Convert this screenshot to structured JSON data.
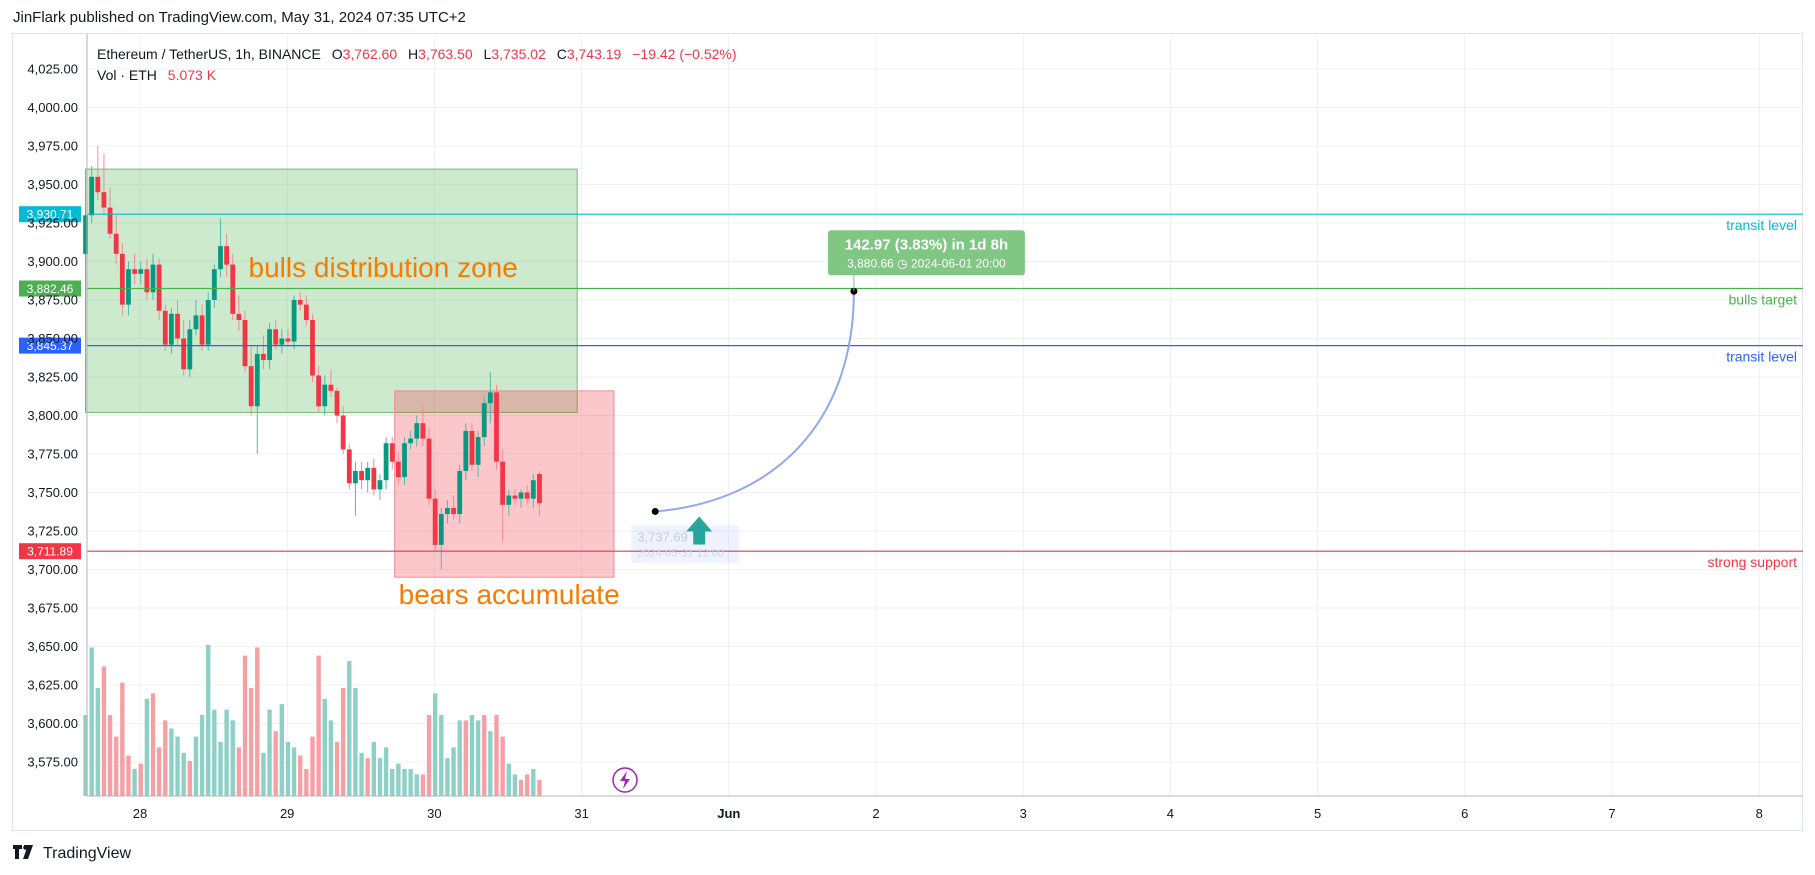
{
  "header": {
    "publisher_line": "JinFlark published on TradingView.com, May 31, 2024 07:35 UTC+2"
  },
  "legend": {
    "symbol": "Ethereum / TetherUS, 1h, BINANCE",
    "o_label": "O",
    "o_value": "3,762.60",
    "h_label": "H",
    "h_value": "3,763.50",
    "l_label": "L",
    "l_value": "3,735.02",
    "c_label": "C",
    "c_value": "3,743.19",
    "change": "−19.42 (−0.52%)",
    "vol_label": "Vol · ETH",
    "vol_value": "5.073 K"
  },
  "footer": {
    "logo_icon": "tradingview-logo-icon",
    "brand": "TradingView"
  },
  "colors": {
    "up": "#089981",
    "down": "#f23645",
    "vol_up": "#8fd0c6",
    "vol_down": "#f5a0a5",
    "grid": "#eef0f4",
    "axis_text": "#131722"
  },
  "chart_data": {
    "type": "candlestick",
    "symbol": "Ethereum / TetherUS, 1h, BINANCE",
    "ylim": [
      3550,
      4050
    ],
    "y_ticks": [
      3575,
      3600,
      3625,
      3650,
      3675,
      3700,
      3725,
      3750,
      3775,
      3800,
      3825,
      3850,
      3875,
      3900,
      3925,
      3950,
      3975,
      4000,
      4025
    ],
    "y_tick_labels": [
      "3,575.00",
      "3,600.00",
      "3,625.00",
      "3,650.00",
      "3,675.00",
      "3,700.00",
      "3,725.00",
      "3,750.00",
      "3,775.00",
      "3,800.00",
      "3,825.00",
      "3,850.00",
      "3,875.00",
      "3,900.00",
      "3,925.00",
      "3,950.00",
      "3,975.00",
      "4,000.00",
      "4,025.00"
    ],
    "x_ticks": [
      {
        "day": 28,
        "label": "28"
      },
      {
        "day": 29,
        "label": "29"
      },
      {
        "day": 30,
        "label": "30"
      },
      {
        "day": 31,
        "label": "31"
      },
      {
        "day": 32,
        "label": "Jun"
      },
      {
        "day": 33,
        "label": "2"
      },
      {
        "day": 34,
        "label": "3"
      },
      {
        "day": 35,
        "label": "4"
      },
      {
        "day": 36,
        "label": "5"
      },
      {
        "day": 37,
        "label": "6"
      },
      {
        "day": 38,
        "label": "7"
      },
      {
        "day": 39,
        "label": "8"
      }
    ],
    "candle_start_day": 27.63,
    "candle_step_days": 0.04167,
    "candles": [
      [
        3905,
        3935,
        3900,
        3930
      ],
      [
        3930,
        3962,
        3925,
        3955
      ],
      [
        3955,
        3975,
        3940,
        3945
      ],
      [
        3945,
        3970,
        3930,
        3935
      ],
      [
        3935,
        3948,
        3915,
        3918
      ],
      [
        3918,
        3930,
        3898,
        3905
      ],
      [
        3905,
        3912,
        3865,
        3872
      ],
      [
        3872,
        3900,
        3865,
        3895
      ],
      [
        3895,
        3905,
        3885,
        3892
      ],
      [
        3892,
        3900,
        3885,
        3895
      ],
      [
        3895,
        3902,
        3875,
        3880
      ],
      [
        3880,
        3905,
        3875,
        3898
      ],
      [
        3898,
        3902,
        3862,
        3868
      ],
      [
        3868,
        3872,
        3842,
        3846
      ],
      [
        3846,
        3870,
        3840,
        3866
      ],
      [
        3866,
        3875,
        3845,
        3850
      ],
      [
        3850,
        3862,
        3826,
        3830
      ],
      [
        3830,
        3862,
        3825,
        3856
      ],
      [
        3856,
        3875,
        3852,
        3865
      ],
      [
        3865,
        3872,
        3842,
        3846
      ],
      [
        3846,
        3880,
        3842,
        3875
      ],
      [
        3875,
        3898,
        3870,
        3895
      ],
      [
        3895,
        3928,
        3890,
        3910
      ],
      [
        3910,
        3918,
        3890,
        3898
      ],
      [
        3898,
        3905,
        3862,
        3866
      ],
      [
        3866,
        3878,
        3855,
        3862
      ],
      [
        3862,
        3868,
        3828,
        3832
      ],
      [
        3832,
        3845,
        3800,
        3806
      ],
      [
        3806,
        3845,
        3775,
        3840
      ],
      [
        3840,
        3852,
        3830,
        3836
      ],
      [
        3836,
        3860,
        3830,
        3856
      ],
      [
        3856,
        3862,
        3843,
        3846
      ],
      [
        3846,
        3856,
        3840,
        3850
      ],
      [
        3850,
        3856,
        3845,
        3848
      ],
      [
        3848,
        3878,
        3843,
        3875
      ],
      [
        3875,
        3880,
        3868,
        3872
      ],
      [
        3872,
        3878,
        3858,
        3862
      ],
      [
        3862,
        3866,
        3822,
        3826
      ],
      [
        3826,
        3832,
        3802,
        3806
      ],
      [
        3806,
        3826,
        3800,
        3820
      ],
      [
        3820,
        3830,
        3812,
        3816
      ],
      [
        3816,
        3818,
        3795,
        3800
      ],
      [
        3800,
        3806,
        3775,
        3778
      ],
      [
        3778,
        3782,
        3752,
        3756
      ],
      [
        3756,
        3770,
        3735,
        3764
      ],
      [
        3764,
        3770,
        3752,
        3758
      ],
      [
        3758,
        3770,
        3750,
        3766
      ],
      [
        3766,
        3772,
        3748,
        3752
      ],
      [
        3752,
        3762,
        3745,
        3758
      ],
      [
        3758,
        3786,
        3752,
        3782
      ],
      [
        3782,
        3786,
        3765,
        3770
      ],
      [
        3770,
        3776,
        3755,
        3760
      ],
      [
        3760,
        3786,
        3755,
        3782
      ],
      [
        3782,
        3790,
        3778,
        3785
      ],
      [
        3785,
        3800,
        3780,
        3795
      ],
      [
        3795,
        3806,
        3780,
        3785
      ],
      [
        3785,
        3792,
        3742,
        3746
      ],
      [
        3746,
        3752,
        3712,
        3716
      ],
      [
        3716,
        3740,
        3700,
        3736
      ],
      [
        3736,
        3745,
        3730,
        3740
      ],
      [
        3740,
        3748,
        3732,
        3736
      ],
      [
        3736,
        3768,
        3730,
        3764
      ],
      [
        3764,
        3795,
        3758,
        3790
      ],
      [
        3790,
        3795,
        3764,
        3768
      ],
      [
        3768,
        3790,
        3760,
        3786
      ],
      [
        3786,
        3812,
        3780,
        3808
      ],
      [
        3808,
        3828,
        3795,
        3815
      ],
      [
        3815,
        3820,
        3765,
        3770
      ],
      [
        3770,
        3778,
        3718,
        3742
      ],
      [
        3742,
        3752,
        3735,
        3748
      ],
      [
        3748,
        3752,
        3742,
        3746
      ],
      [
        3746,
        3752,
        3740,
        3750
      ],
      [
        3750,
        3755,
        3742,
        3746
      ],
      [
        3746,
        3762,
        3740,
        3758
      ],
      [
        3762,
        3764,
        3735,
        3743
      ]
    ],
    "volume": [
      [
        30,
        1
      ],
      [
        55,
        1
      ],
      [
        40,
        1
      ],
      [
        48,
        0
      ],
      [
        30,
        0
      ],
      [
        22,
        0
      ],
      [
        42,
        0
      ],
      [
        15,
        0
      ],
      [
        10,
        1
      ],
      [
        12,
        0
      ],
      [
        36,
        1
      ],
      [
        38,
        0
      ],
      [
        18,
        0
      ],
      [
        28,
        0
      ],
      [
        25,
        1
      ],
      [
        22,
        1
      ],
      [
        16,
        1
      ],
      [
        13,
        0
      ],
      [
        22,
        1
      ],
      [
        30,
        1
      ],
      [
        56,
        1
      ],
      [
        32,
        1
      ],
      [
        20,
        1
      ],
      [
        32,
        1
      ],
      [
        28,
        1
      ],
      [
        18,
        0
      ],
      [
        52,
        0
      ],
      [
        40,
        0
      ],
      [
        55,
        0
      ],
      [
        16,
        1
      ],
      [
        32,
        1
      ],
      [
        24,
        0
      ],
      [
        34,
        1
      ],
      [
        20,
        1
      ],
      [
        18,
        1
      ],
      [
        15,
        0
      ],
      [
        10,
        0
      ],
      [
        22,
        0
      ],
      [
        52,
        0
      ],
      [
        36,
        1
      ],
      [
        28,
        1
      ],
      [
        20,
        0
      ],
      [
        40,
        0
      ],
      [
        50,
        1
      ],
      [
        40,
        1
      ],
      [
        16,
        1
      ],
      [
        14,
        0
      ],
      [
        20,
        1
      ],
      [
        14,
        1
      ],
      [
        18,
        1
      ],
      [
        10,
        1
      ],
      [
        12,
        1
      ],
      [
        10,
        1
      ],
      [
        10,
        1
      ],
      [
        8,
        1
      ],
      [
        8,
        0
      ],
      [
        30,
        0
      ],
      [
        38,
        1
      ],
      [
        30,
        1
      ],
      [
        14,
        1
      ],
      [
        18,
        1
      ],
      [
        28,
        1
      ],
      [
        28,
        0
      ],
      [
        30,
        1
      ],
      [
        28,
        1
      ],
      [
        30,
        0
      ],
      [
        24,
        1
      ],
      [
        30,
        0
      ],
      [
        22,
        0
      ],
      [
        12,
        1
      ],
      [
        8,
        1
      ],
      [
        6,
        0
      ],
      [
        8,
        0
      ],
      [
        10,
        1
      ],
      [
        6,
        0
      ]
    ],
    "price_lines": [
      {
        "price": 3930.71,
        "label": "3,930.71",
        "color": "#00bcd4",
        "text": "transit level"
      },
      {
        "price": 3882.46,
        "label": "3,882.46",
        "color": "#4caf50",
        "text": "bulls target"
      },
      {
        "price": 3845.37,
        "label": "3,845.37",
        "color": "#2962ff",
        "text": "transit level"
      },
      {
        "price": 3711.89,
        "label": "3,711.89",
        "color": "#f23645",
        "text": "strong support"
      }
    ],
    "zones": [
      {
        "name": "bulls distribution zone",
        "day_from": 27.63,
        "day_to": 30.97,
        "price_from": 3802,
        "price_to": 3960,
        "color": "rgba(76,175,80,0.28)",
        "border": "#6dbf70",
        "text_color": "#f57c00"
      },
      {
        "name": "bears accumulate",
        "day_from": 29.73,
        "day_to": 31.22,
        "price_from": 3695,
        "price_to": 3816,
        "color": "rgba(242,54,69,0.28)",
        "border": "#f28b95",
        "text_color": "#f57c00"
      }
    ],
    "projection": {
      "start_day": 31.5,
      "start_price": 3737.69,
      "end_day": 32.85,
      "end_price": 3880.66,
      "label_main": "142.97 (3.83%) in 1d 8h",
      "label_sub": "3,880.66 ◷ 2024-06-01  20:00",
      "ghost_price": "3,737.69",
      "ghost_time": "2024-05-31  12:00"
    }
  }
}
